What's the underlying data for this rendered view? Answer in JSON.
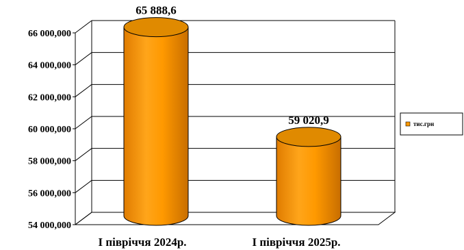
{
  "chart_data": {
    "type": "bar",
    "style": "3d-cylinder",
    "categories": [
      "І півріччя 2024р.",
      "І півріччя 2025р."
    ],
    "series": [
      {
        "name": "тис.грн",
        "values": [
          65888.6,
          59020.9
        ]
      }
    ],
    "data_labels": [
      "65 888,6",
      "59 020,9"
    ],
    "y_ticks": [
      "54 000,000",
      "56 000,000",
      "58 000,000",
      "60 000,000",
      "62 000,000",
      "64 000,000",
      "66 000,000"
    ],
    "ylim": [
      54000,
      66000
    ],
    "grid": true,
    "legend_position": "right",
    "colors": {
      "bar": "#FF9900",
      "bar_dark": "#D97A00",
      "bar_top": "#E08A00",
      "grid": "#000000"
    }
  }
}
